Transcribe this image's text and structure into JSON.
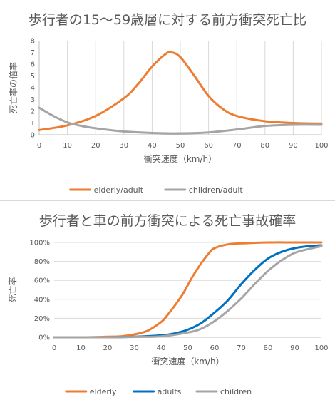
{
  "chart_data": [
    {
      "type": "line",
      "title": "歩行者の15〜59歳層に対する前方衝突死亡比",
      "xlabel": "衝突速度（km/h）",
      "ylabel": "死亡率の倍率",
      "xlim": [
        0,
        100
      ],
      "ylim": [
        0,
        8
      ],
      "xticks": [
        "0",
        "10",
        "20",
        "30",
        "40",
        "50",
        "60",
        "70",
        "80",
        "90",
        "100"
      ],
      "yticks": [
        "0",
        "1",
        "2",
        "3",
        "4",
        "5",
        "6",
        "7",
        "8"
      ],
      "grid": "vertical",
      "legend_position": "bottom",
      "series": [
        {
          "name": "elderly/adult",
          "color": "#ed7d31",
          "x": [
            0,
            10,
            20,
            30,
            35,
            40,
            45,
            47,
            50,
            55,
            60,
            65,
            70,
            80,
            90,
            100
          ],
          "y": [
            0.4,
            0.8,
            1.6,
            3.1,
            4.3,
            5.8,
            6.9,
            7.0,
            6.6,
            5.0,
            3.3,
            2.2,
            1.6,
            1.15,
            1.0,
            0.95
          ]
        },
        {
          "name": "children/adult",
          "color": "#a5a5a5",
          "x": [
            0,
            5,
            10,
            15,
            20,
            25,
            30,
            40,
            50,
            60,
            70,
            80,
            90,
            100
          ],
          "y": [
            2.3,
            1.6,
            1.05,
            0.75,
            0.55,
            0.4,
            0.28,
            0.15,
            0.12,
            0.2,
            0.45,
            0.75,
            0.85,
            0.85
          ]
        }
      ]
    },
    {
      "type": "line",
      "title": "歩行者と車の前方衝突による死亡事故確率",
      "xlabel": "衝突速度（km/h）",
      "ylabel": "死亡率",
      "xlim": [
        0,
        100
      ],
      "ylim": [
        0,
        100
      ],
      "xticks": [
        "0",
        "10",
        "20",
        "30",
        "40",
        "50",
        "60",
        "70",
        "80",
        "90",
        "100"
      ],
      "yticks": [
        "0%",
        "20%",
        "40%",
        "60%",
        "80%",
        "100%"
      ],
      "grid": "horizontal",
      "legend_position": "bottom",
      "series": [
        {
          "name": "elderly",
          "color": "#ed7d31",
          "x": [
            0,
            10,
            20,
            25,
            30,
            35,
            40,
            42,
            45,
            48,
            50,
            52,
            55,
            58,
            60,
            65,
            70,
            80,
            90,
            100
          ],
          "y": [
            0,
            0,
            0.5,
            1,
            3,
            7,
            16,
            22,
            33,
            45,
            55,
            65,
            78,
            89,
            94,
            98,
            99,
            100,
            100,
            100
          ]
        },
        {
          "name": "adults",
          "color": "#0070c0",
          "x": [
            0,
            20,
            30,
            40,
            45,
            50,
            55,
            60,
            65,
            70,
            75,
            80,
            85,
            90,
            95,
            100
          ],
          "y": [
            0,
            0,
            0.5,
            2,
            4,
            8,
            15,
            26,
            39,
            56,
            71,
            83,
            90,
            94,
            96,
            97
          ]
        },
        {
          "name": "children",
          "color": "#a5a5a5",
          "x": [
            0,
            20,
            30,
            40,
            50,
            55,
            60,
            65,
            70,
            75,
            80,
            85,
            90,
            95,
            100
          ],
          "y": [
            0,
            0,
            0.4,
            1,
            5,
            9,
            17,
            28,
            41,
            56,
            70,
            81,
            89,
            93,
            96
          ]
        }
      ]
    }
  ]
}
